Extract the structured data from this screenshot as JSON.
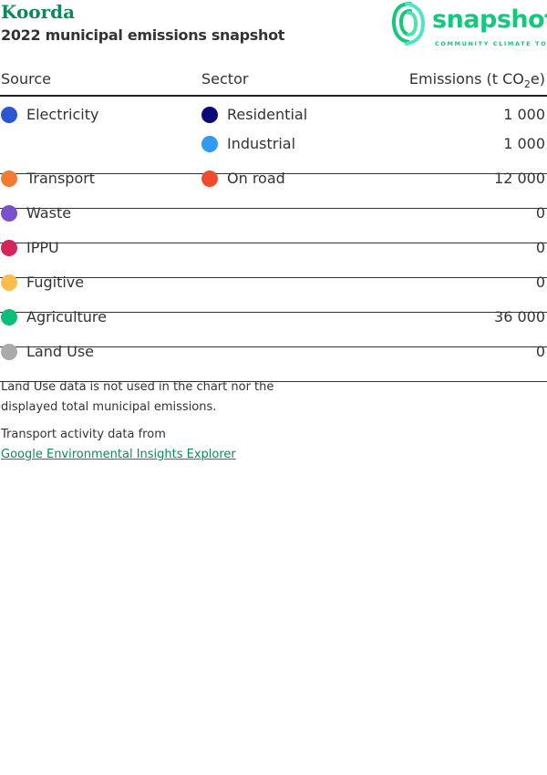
{
  "header": {
    "title": "Koorda",
    "subtitle": "2022 municipal emissions snapshot"
  },
  "logo": {
    "word": "snapshot",
    "tagline": "COMMUNITY CLIMATE TOOL"
  },
  "table": {
    "columns": {
      "source": "Source",
      "sector": "Sector",
      "emissions_prefix": "Emissions (t CO",
      "emissions_sub": "2",
      "emissions_suffix": "e)"
    },
    "rows": [
      {
        "source": "Electricity",
        "source_color": "#2a56d4",
        "sectors": [
          {
            "name": "Residential",
            "color": "#0a0a7a",
            "value": "1 000"
          },
          {
            "name": "Industrial",
            "color": "#2f9bf5",
            "value": "1 000"
          }
        ]
      },
      {
        "source": "Transport",
        "source_color": "#f47a30",
        "sectors": [
          {
            "name": "On road",
            "color": "#ef4b2c",
            "value": "12 000"
          }
        ]
      },
      {
        "source": "Waste",
        "source_color": "#7a52cc",
        "sectors": [
          {
            "name": "",
            "value": "0"
          }
        ]
      },
      {
        "source": "IPPU",
        "source_color": "#d5255a",
        "sectors": [
          {
            "name": "",
            "value": "0"
          }
        ]
      },
      {
        "source": "Fugitive",
        "source_color": "#fbbd4c",
        "sectors": [
          {
            "name": "",
            "value": "0"
          }
        ]
      },
      {
        "source": "Agriculture",
        "source_color": "#0bbf7a",
        "sectors": [
          {
            "name": "",
            "value": "36 000"
          }
        ]
      },
      {
        "source": "Land Use",
        "source_color": "#aaaaaa",
        "sectors": [
          {
            "name": "",
            "value": "0"
          }
        ]
      }
    ]
  },
  "notes": {
    "land_use_line1": "Land Use data is not used in the chart nor the",
    "land_use_line2": "displayed total municipal emissions.",
    "transport": "Transport activity data from",
    "link": "Google Environmental Insights Explorer"
  }
}
